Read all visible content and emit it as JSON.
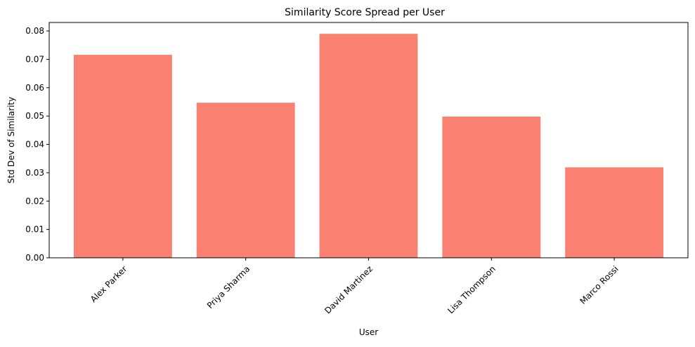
{
  "chart_data": {
    "type": "bar",
    "title": "Similarity Score Spread per User",
    "xlabel": "User",
    "ylabel": "Std Dev of Similarity",
    "categories": [
      "Alex Parker",
      "Priya Sharma",
      "David Martinez",
      "Lisa Thompson",
      "Marco Rossi"
    ],
    "values": [
      0.0716,
      0.0547,
      0.079,
      0.0498,
      0.0319
    ],
    "ylim": [
      0,
      0.083
    ],
    "yticks": [
      "0.00",
      "0.01",
      "0.02",
      "0.03",
      "0.04",
      "0.05",
      "0.06",
      "0.07",
      "0.08"
    ],
    "grid": false,
    "legend": "none",
    "bar_color": "#fa8072",
    "xtick_rotation_deg": 45
  }
}
